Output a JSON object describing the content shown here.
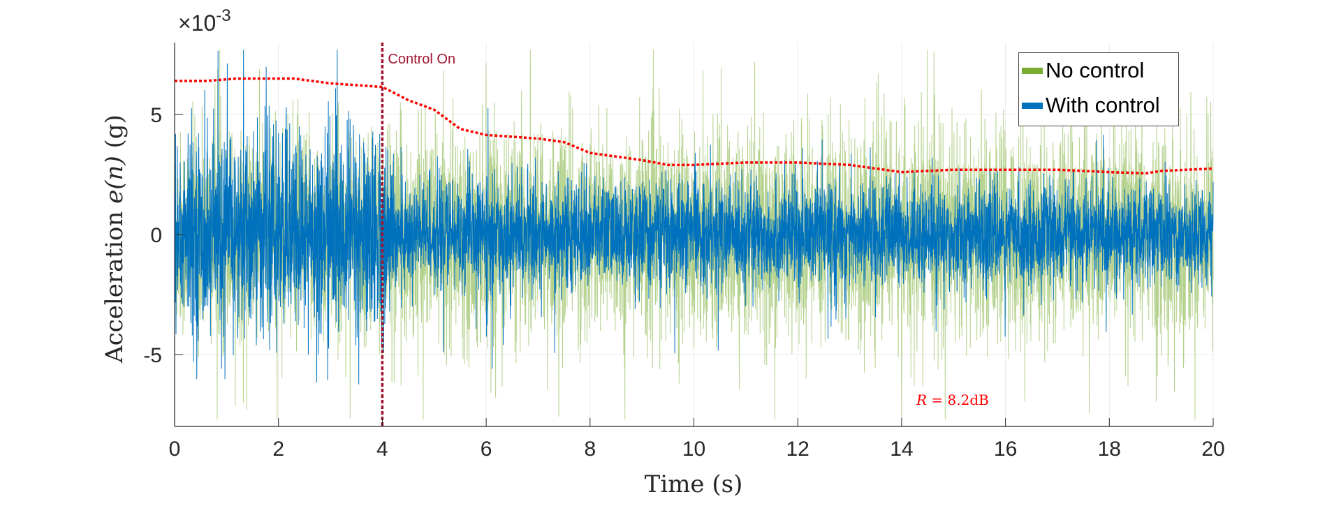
{
  "chart_data": {
    "type": "line",
    "xlabel": "Time (s)",
    "ylabel_prefix": "Acceleration ",
    "ylabel_var": "e(n)",
    "ylabel_suffix": " (g)",
    "y_multiplier": "×10",
    "y_exponent": "-3",
    "xlim": [
      0,
      20
    ],
    "ylim": [
      -8,
      8
    ],
    "xticks": [
      0,
      2,
      4,
      6,
      8,
      10,
      12,
      14,
      16,
      18,
      20
    ],
    "yticks": [
      -5,
      0,
      5
    ],
    "ytick_labels": [
      "-5",
      "0",
      "5"
    ],
    "grid": true,
    "legend_position": "top-right",
    "series": [
      {
        "name": "No control",
        "color": "#77AC30",
        "noise_std_e3": [
          [
            0,
            2.1
          ],
          [
            20,
            2.1
          ]
        ]
      },
      {
        "name": "With control",
        "color": "#0072BD",
        "noise_std_e3": [
          [
            0,
            2.0
          ],
          [
            4,
            2.0
          ],
          [
            4.3,
            1.1
          ],
          [
            20,
            0.95
          ]
        ]
      }
    ],
    "envelope": {
      "color": "#FF0000",
      "x": [
        0,
        0.6,
        1.2,
        2.3,
        3.0,
        4.0,
        4.5,
        5.0,
        5.5,
        6.0,
        7.0,
        7.5,
        8.0,
        9.0,
        9.5,
        10,
        11,
        12,
        13,
        14,
        15,
        16,
        17,
        18,
        18.7,
        19,
        20
      ],
      "y": [
        6.4,
        6.4,
        6.5,
        6.5,
        6.3,
        6.15,
        5.6,
        5.2,
        4.4,
        4.15,
        4.0,
        3.85,
        3.4,
        3.1,
        2.9,
        2.9,
        3.0,
        3.0,
        2.9,
        2.6,
        2.7,
        2.7,
        2.7,
        2.6,
        2.55,
        2.65,
        2.75
      ]
    },
    "annotations": {
      "control_on": {
        "x": 4,
        "label": "Control On",
        "color": "#A2142F"
      },
      "reduction": {
        "var": "R",
        "text": " = 8.2dB",
        "x": 15,
        "y": -7.3
      }
    }
  }
}
